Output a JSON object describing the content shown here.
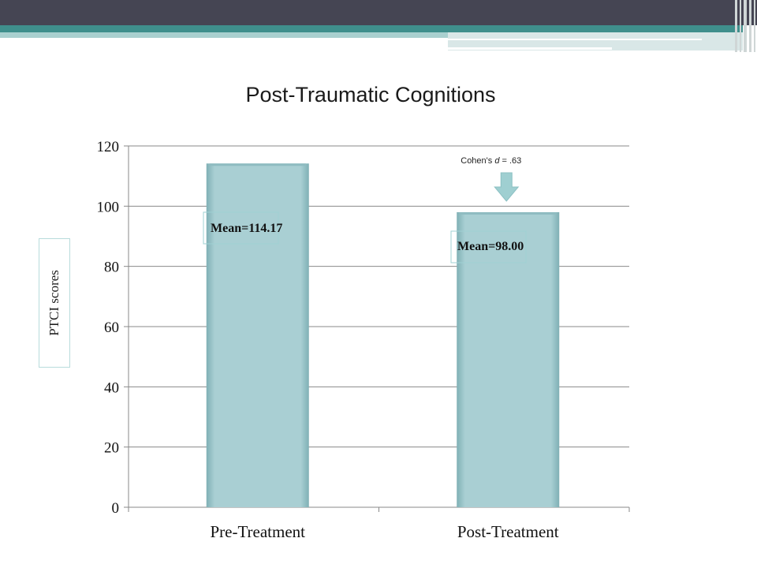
{
  "chart_data": {
    "type": "bar",
    "title": "Post-Traumatic  Cognitions",
    "ylabel": "PTCI scores",
    "xlabel": "",
    "categories": [
      "Pre-Treatment",
      "Post-Treatment"
    ],
    "values": [
      114.17,
      98.0
    ],
    "data_labels": [
      "Mean=114.17",
      "Mean=98.00"
    ],
    "ylim": [
      0,
      120
    ],
    "yticks": [
      0,
      20,
      40,
      60,
      80,
      100,
      120
    ],
    "grid": true,
    "legend": "none",
    "bar_color": "#a9cfd3",
    "annotation": {
      "text_before": "Cohen's ",
      "text_italic": "d",
      "text_after": " = .63",
      "target_category": "Post-Treatment",
      "arrow_color": "#9fcfd1"
    }
  },
  "colors": {
    "header_dark": "#454553",
    "header_teal": "#3f8f8c",
    "header_pale": "#a9d0cf"
  }
}
